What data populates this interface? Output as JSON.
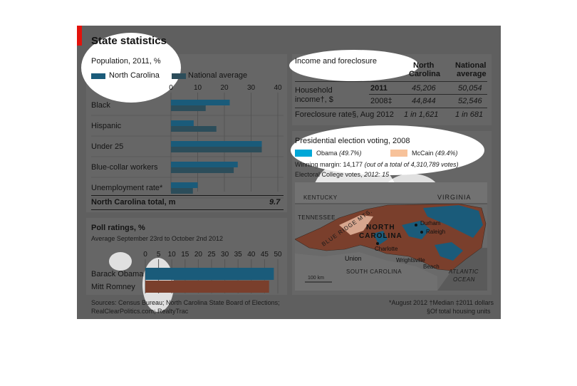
{
  "title": "State statistics",
  "population": {
    "subtitle": "Population, 2011, %",
    "legend": [
      "North Carolina",
      "National average"
    ],
    "ticks": [
      0,
      10,
      20,
      30,
      40
    ],
    "total_label": "North Carolina total, m",
    "total_value": "9.7"
  },
  "poll": {
    "title": "Poll ratings, %",
    "subtitle": "Average September 23rd to October 2nd 2012",
    "ticks": [
      0,
      5,
      10,
      15,
      20,
      25,
      30,
      35,
      40,
      45,
      50
    ]
  },
  "chart_data": [
    {
      "type": "bar",
      "orientation": "horizontal",
      "title": "Population, 2011, %",
      "categories": [
        "Black",
        "Hispanic",
        "Under 25",
        "Blue-collar workers",
        "Unemployment rate*"
      ],
      "series": [
        {
          "name": "North Carolina",
          "values": [
            22,
            8.5,
            34,
            25,
            10
          ]
        },
        {
          "name": "National average",
          "values": [
            13,
            17,
            34,
            23.5,
            8.2
          ]
        }
      ],
      "xlim": [
        0,
        40
      ]
    },
    {
      "type": "bar",
      "orientation": "horizontal",
      "title": "Poll ratings, %",
      "categories": [
        "Barack Obama",
        "Mitt Romney"
      ],
      "values": [
        48.5,
        46.7
      ],
      "xlim": [
        0,
        50
      ]
    }
  ],
  "income": {
    "title": "Income and foreclosure",
    "col_nc": [
      "North",
      "Carolina"
    ],
    "col_nat": [
      "National",
      "average"
    ],
    "household_label": [
      "Household",
      "income†, $"
    ],
    "rows": [
      {
        "year": "2011",
        "nc": "45,206",
        "nat": "50,054"
      },
      {
        "year": "2008‡",
        "nc": "44,844",
        "nat": "52,546"
      }
    ],
    "foreclosure_label": "Foreclosure rate§, Aug 2012",
    "foreclosure_nc": "1 in 1,621",
    "foreclosure_nat": "1 in 681"
  },
  "election": {
    "title": "Presidential election voting, 2008",
    "obama": "Obama",
    "obama_pct": "(49.7%)",
    "mccain": "McCain",
    "mccain_pct": "(49.4%)",
    "margin_label": "Winning margin: 14,177",
    "margin_note": "(out of a total of 4,310,789 votes)",
    "ec_label": "Electoral College votes,",
    "ec_value": "2012: 15",
    "colors": {
      "obama": "#00a8d8",
      "mccain": "#f7c29a",
      "obama_dark": "#1a5b7a",
      "mccain_dark": "#7a3f2c"
    }
  },
  "map": {
    "kentucky": "KENTUCKY",
    "virginia": "VIRGINIA",
    "tennessee": "TENNESSEE",
    "mountains": "BLUE RIDGE MTS.",
    "state_l1": "NORTH",
    "state_l2": "CAROLINA",
    "durham": "Durham",
    "raleigh": "Raleigh",
    "charlotte": "Charlotte",
    "union": "Union",
    "wilmington_l1": "Wrightsville",
    "wilmington_l2": "Beach",
    "south_carolina": "SOUTH CAROLINA",
    "ocean_l1": "ATLANTIC",
    "ocean_l2": "OCEAN",
    "scale": "100 km"
  },
  "sources": [
    "Sources: Census Bureau; North Carolina State Board of Elections;",
    "RealClearPolitics.com; RealtyTrac"
  ],
  "footnotes": [
    "*August 2012 †Median ‡2011 dollars",
    "§Of total housing units"
  ]
}
